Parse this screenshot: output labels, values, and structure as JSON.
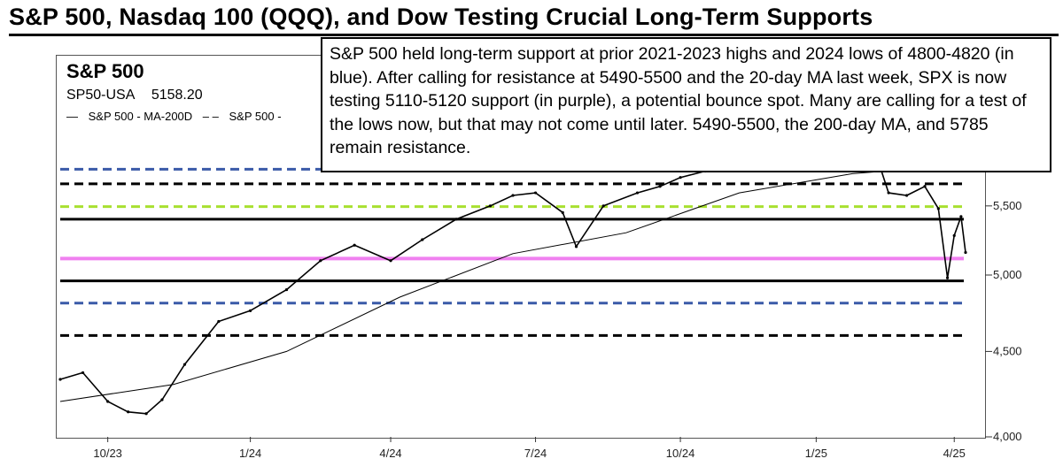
{
  "headline": "S&P 500, Nasdaq 100 (QQQ), and Dow Testing Crucial Long-Term Supports",
  "annotation": "S&P 500 held long-term support at prior 2021-2023 highs and 2024 lows of 4800-4820 (in blue). After calling for resistance at 5490-5500 and the 20-day MA last week, SPX is now testing 5110-5120 support (in purple), a potential bounce spot. Many are calling for a test of the lows now, but that may not come until later. 5490-5500, the 200-day MA, and 5785 remain resistance.",
  "chart_data": {
    "type": "line",
    "title": "S&P 500",
    "symbol": "SP50-USA",
    "last_value": "5158.20",
    "legend": [
      "S&P 500 - MA-200D",
      "S&P 500 -"
    ],
    "x_tick_labels": [
      "10/23",
      "1/24",
      "4/24",
      "7/24",
      "10/24",
      "1/25",
      "4/25"
    ],
    "y_tick_labels": [
      "4,000",
      "4,500",
      "5,000",
      "5,500"
    ],
    "ylim": [
      4000,
      6250
    ],
    "y_scale": "log",
    "x_index_range": [
      0,
      400
    ],
    "x_tick_index": [
      21,
      84,
      146,
      210,
      274,
      334,
      395
    ],
    "series": [
      {
        "name": "S&P 500",
        "color": "#000000",
        "points": [
          [
            0,
            4330
          ],
          [
            10,
            4370
          ],
          [
            21,
            4200
          ],
          [
            30,
            4140
          ],
          [
            38,
            4130
          ],
          [
            45,
            4210
          ],
          [
            55,
            4420
          ],
          [
            70,
            4690
          ],
          [
            84,
            4760
          ],
          [
            100,
            4900
          ],
          [
            115,
            5100
          ],
          [
            130,
            5210
          ],
          [
            146,
            5100
          ],
          [
            160,
            5250
          ],
          [
            175,
            5400
          ],
          [
            190,
            5500
          ],
          [
            200,
            5580
          ],
          [
            210,
            5600
          ],
          [
            222,
            5450
          ],
          [
            228,
            5200
          ],
          [
            240,
            5500
          ],
          [
            255,
            5600
          ],
          [
            265,
            5650
          ],
          [
            274,
            5720
          ],
          [
            285,
            5770
          ],
          [
            295,
            5850
          ],
          [
            305,
            5950
          ],
          [
            315,
            6020
          ],
          [
            325,
            5920
          ],
          [
            334,
            6040
          ],
          [
            344,
            5950
          ],
          [
            353,
            6100
          ],
          [
            360,
            5930
          ],
          [
            366,
            5600
          ],
          [
            374,
            5580
          ],
          [
            382,
            5650
          ],
          [
            388,
            5480
          ],
          [
            392,
            4980
          ],
          [
            395,
            5280
          ],
          [
            398,
            5420
          ],
          [
            400,
            5158
          ]
        ]
      },
      {
        "name": "MA-200D",
        "color": "#000000",
        "points": [
          [
            0,
            4200
          ],
          [
            50,
            4300
          ],
          [
            100,
            4500
          ],
          [
            150,
            4850
          ],
          [
            200,
            5150
          ],
          [
            250,
            5300
          ],
          [
            300,
            5600
          ],
          [
            350,
            5750
          ],
          [
            400,
            5820
          ]
        ]
      }
    ],
    "levels": [
      {
        "value": 4810,
        "color": "#3a5aa8",
        "style": "dashed-blue"
      },
      {
        "value": 5115,
        "color": "#f080f0",
        "style": "solid-purple"
      },
      {
        "value": 5495,
        "color": "#a8e030",
        "style": "dashed-green"
      },
      {
        "value": 5785,
        "color": "#3a5aa8",
        "style": "dashed-blue"
      },
      {
        "value": 5670,
        "color": "#000000",
        "style": "dashed-black"
      },
      {
        "value": 5400,
        "color": "#000000",
        "style": "solid-black"
      },
      {
        "value": 4960,
        "color": "#000000",
        "style": "solid-black"
      },
      {
        "value": 4600,
        "color": "#000000",
        "style": "dashed-black"
      }
    ]
  }
}
